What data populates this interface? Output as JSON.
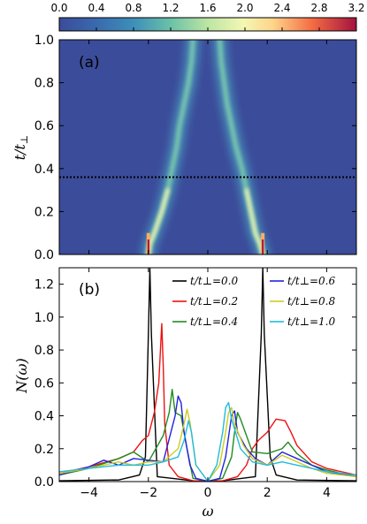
{
  "colorbar": {
    "ticks": [
      "0.0",
      "0.4",
      "0.8",
      "1.2",
      "1.6",
      "2.0",
      "2.4",
      "2.8",
      "3.2"
    ],
    "range": [
      0,
      3.2
    ]
  },
  "panel_a": {
    "label": "(a)",
    "ylabel": "t/t⊥",
    "yticks": [
      "0.0",
      "0.2",
      "0.4",
      "0.6",
      "0.8",
      "1.0"
    ],
    "dotted_line_y": 0.36
  },
  "panel_b": {
    "label": "(b)",
    "ylabel": "N(ω)",
    "xlabel": "ω",
    "yticks": [
      "0.0",
      "0.2",
      "0.4",
      "0.6",
      "0.8",
      "1.0",
      "1.2"
    ],
    "xticks": [
      "−4",
      "−2",
      "0",
      "2",
      "4"
    ]
  },
  "colors": {
    "t0.0": "#000000",
    "t0.2": "#ee1111",
    "t0.4": "#228b22",
    "t0.6": "#2222dd",
    "t0.8": "#cccc22",
    "t1.0": "#22bbdd",
    "background": "#3b4c9a"
  },
  "chart_data": [
    {
      "type": "heatmap",
      "title": "(a)",
      "xlabel": "",
      "ylabel": "t/t⊥",
      "xlim": [
        -5,
        5
      ],
      "ylim": [
        0,
        1.0
      ],
      "zlim": [
        0,
        3.2
      ],
      "ridges": [
        {
          "t": [
            0.0,
            0.05,
            0.1,
            0.2,
            0.3,
            0.4,
            0.5,
            0.6,
            0.7,
            0.8,
            0.9,
            1.0
          ],
          "omega": [
            -2.0,
            -1.95,
            -1.8,
            -1.55,
            -1.35,
            -1.2,
            -1.05,
            -0.95,
            -0.8,
            -0.65,
            -0.55,
            -0.5
          ]
        },
        {
          "t": [
            0.0,
            0.05,
            0.1,
            0.2,
            0.3,
            0.4,
            0.5,
            0.6,
            0.7,
            0.8,
            0.9,
            1.0
          ],
          "omega": [
            1.85,
            1.75,
            1.6,
            1.45,
            1.3,
            1.15,
            0.95,
            0.8,
            0.65,
            0.55,
            0.45,
            0.4
          ]
        }
      ],
      "peak_value": 3.2
    },
    {
      "type": "line",
      "title": "(b)",
      "xlabel": "ω",
      "ylabel": "N(ω)",
      "xlim": [
        -5,
        5
      ],
      "ylim": [
        0,
        1.3
      ],
      "legend_position": "top-right",
      "series": [
        {
          "name": "t/t⊥=0.0",
          "x": [
            -5,
            -3,
            -2.3,
            -2.1,
            -2.0,
            -1.95,
            -1.9,
            -1.7,
            -0.5,
            0,
            0.5,
            1.6,
            1.8,
            1.85,
            1.9,
            2.1,
            2.3,
            3,
            5
          ],
          "y": [
            0.005,
            0.01,
            0.04,
            0.15,
            0.9,
            1.3,
            0.9,
            0.03,
            0.005,
            0.003,
            0.005,
            0.03,
            0.9,
            1.3,
            0.9,
            0.15,
            0.04,
            0.01,
            0.005
          ]
        },
        {
          "name": "t/t⊥=0.2",
          "x": [
            -5,
            -4,
            -3,
            -2.5,
            -2.2,
            -2.0,
            -1.8,
            -1.65,
            -1.55,
            -1.5,
            -1.45,
            -1.3,
            -1.0,
            -0.5,
            0,
            0.5,
            1.0,
            1.3,
            1.5,
            1.7,
            2.0,
            2.3,
            2.6,
            2.8,
            3.0,
            3.5,
            4,
            5
          ],
          "y": [
            0.05,
            0.09,
            0.14,
            0.18,
            0.25,
            0.28,
            0.42,
            0.6,
            0.96,
            0.7,
            0.35,
            0.1,
            0.03,
            0.005,
            0.002,
            0.005,
            0.03,
            0.1,
            0.2,
            0.25,
            0.3,
            0.38,
            0.37,
            0.3,
            0.22,
            0.12,
            0.08,
            0.04
          ]
        },
        {
          "name": "t/t⊥=0.4",
          "x": [
            -5,
            -4,
            -3,
            -2.5,
            -2.0,
            -1.5,
            -1.3,
            -1.2,
            -1.1,
            -0.9,
            -0.7,
            -0.5,
            0,
            0.5,
            0.8,
            0.9,
            1.0,
            1.1,
            1.3,
            1.5,
            2.0,
            2.5,
            2.7,
            3.0,
            3.5,
            4,
            5
          ],
          "y": [
            0.04,
            0.08,
            0.14,
            0.18,
            0.12,
            0.28,
            0.42,
            0.56,
            0.42,
            0.4,
            0.2,
            0.02,
            0.002,
            0.02,
            0.15,
            0.3,
            0.42,
            0.38,
            0.28,
            0.18,
            0.17,
            0.2,
            0.24,
            0.17,
            0.1,
            0.07,
            0.03
          ]
        },
        {
          "name": "t/t⊥=0.6",
          "x": [
            -5,
            -4,
            -3.5,
            -3,
            -2.5,
            -2.0,
            -1.5,
            -1.1,
            -1.0,
            -0.9,
            -0.8,
            -0.6,
            -0.4,
            0,
            0.4,
            0.6,
            0.8,
            0.9,
            1.0,
            1.3,
            1.6,
            2.0,
            2.5,
            3.0,
            3.5,
            4,
            5
          ],
          "y": [
            0.04,
            0.09,
            0.13,
            0.1,
            0.14,
            0.13,
            0.12,
            0.4,
            0.52,
            0.48,
            0.3,
            0.1,
            0.02,
            0.002,
            0.02,
            0.15,
            0.4,
            0.43,
            0.3,
            0.2,
            0.14,
            0.1,
            0.18,
            0.14,
            0.1,
            0.06,
            0.03
          ]
        },
        {
          "name": "t/t⊥=0.8",
          "x": [
            -5,
            -4,
            -3,
            -2.5,
            -2.0,
            -1.5,
            -1.0,
            -0.8,
            -0.7,
            -0.6,
            -0.4,
            0,
            0.4,
            0.6,
            0.7,
            0.8,
            0.9,
            1.2,
            1.5,
            2.0,
            2.5,
            3.0,
            3.5,
            4,
            5
          ],
          "y": [
            0.05,
            0.08,
            0.12,
            0.1,
            0.12,
            0.12,
            0.2,
            0.35,
            0.44,
            0.36,
            0.1,
            0.002,
            0.1,
            0.3,
            0.42,
            0.45,
            0.35,
            0.22,
            0.14,
            0.1,
            0.16,
            0.12,
            0.08,
            0.05,
            0.03
          ]
        },
        {
          "name": "t/t⊥=1.0",
          "x": [
            -5,
            -4,
            -3,
            -2.5,
            -2.0,
            -1.5,
            -1.0,
            -0.8,
            -0.65,
            -0.55,
            -0.4,
            0,
            0.3,
            0.5,
            0.6,
            0.7,
            0.8,
            1.1,
            1.5,
            2.0,
            2.5,
            3.0,
            3.5,
            4,
            5
          ],
          "y": [
            0.06,
            0.08,
            0.1,
            0.1,
            0.1,
            0.12,
            0.15,
            0.25,
            0.37,
            0.3,
            0.1,
            0.002,
            0.1,
            0.3,
            0.45,
            0.48,
            0.38,
            0.2,
            0.12,
            0.1,
            0.12,
            0.1,
            0.08,
            0.06,
            0.04
          ]
        }
      ]
    }
  ]
}
